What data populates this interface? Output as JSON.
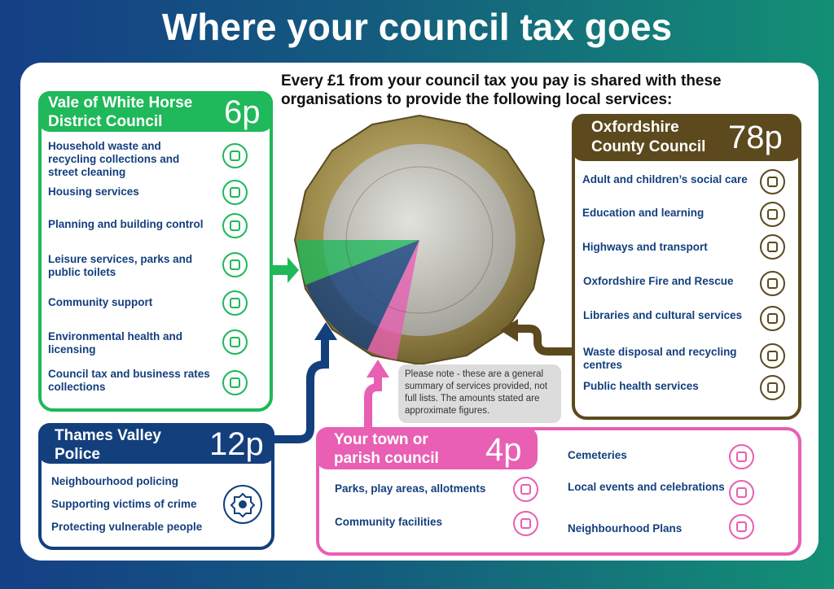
{
  "title": "Where your council tax goes",
  "intro": "Every £1 from your council tax you pay is shared with these organisations to provide the following local services:",
  "colors": {
    "vale": "#1fb85a",
    "police": "#133f7d",
    "county": "#5c4a1e",
    "parish": "#e85fb3"
  },
  "vale": {
    "name_line1": "Vale of White Horse",
    "name_line2": "District Council",
    "amount": "6p",
    "items": [
      {
        "label": "Household waste and recycling collections and street cleaning",
        "icon": "recycling-bin-icon"
      },
      {
        "label": "Housing services",
        "icon": "house-icon"
      },
      {
        "label": "Planning and building control",
        "icon": "buildings-icon"
      },
      {
        "label": "Leisure services, parks and public toilets",
        "icon": "treadmill-icon"
      },
      {
        "label": "Community support",
        "icon": "hands-heart-icon"
      },
      {
        "label": "Environmental health and licensing",
        "icon": "fork-knife-icon"
      },
      {
        "label": "Council tax and business rates collections",
        "icon": "pound-icon"
      }
    ]
  },
  "police": {
    "name_line1": "Thames Valley",
    "name_line2": "Police",
    "amount": "12p",
    "items": [
      {
        "label": "Neighbourhood policing"
      },
      {
        "label": "Supporting victims of crime"
      },
      {
        "label": "Protecting vulnerable people"
      }
    ],
    "icon": "police-badge-icon"
  },
  "county": {
    "name_line1": "Oxfordshire",
    "name_line2": "County Council",
    "amount": "78p",
    "items": [
      {
        "label": "Adult and children’s social care",
        "icon": "family-icon"
      },
      {
        "label": "Education and learning",
        "icon": "teacher-icon"
      },
      {
        "label": "Highways and transport",
        "icon": "road-icon"
      },
      {
        "label": "Oxfordshire Fire and Rescue",
        "icon": "flame-icon"
      },
      {
        "label": "Libraries and cultural services",
        "icon": "book-icon"
      },
      {
        "label": "Waste disposal and recycling centres",
        "icon": "recycling-truck-icon"
      },
      {
        "label": "Public health services",
        "icon": "ambulance-icon"
      }
    ]
  },
  "parish": {
    "name_line1": "Your town or",
    "name_line2": "parish council",
    "amount": "4p",
    "items": [
      {
        "label": "Parks, play areas, allotments",
        "icon": "tree-bench-icon"
      },
      {
        "label": "Community facilities",
        "icon": "community-hall-icon"
      },
      {
        "label": "Cemeteries",
        "icon": "gravestone-icon"
      },
      {
        "label": "Local events and celebrations",
        "icon": "christmas-tree-icon"
      },
      {
        "label": "Neighbourhood Plans",
        "icon": "village-icon"
      }
    ]
  },
  "note": "Please note - these are a general summary of services provided, not full lists.  The amounts stated are approximate figures.",
  "chart_data": {
    "type": "pie",
    "slices": [
      {
        "label": "Oxfordshire County Council",
        "value": 78,
        "color": "#5c4a1e"
      },
      {
        "label": "Vale of White Horse District Council",
        "value": 6,
        "color": "#1fb85a"
      },
      {
        "label": "Thames Valley Police",
        "value": 12,
        "color": "#133f7d"
      },
      {
        "label": "Your town or parish council",
        "value": 4,
        "color": "#e85fb3"
      }
    ]
  }
}
